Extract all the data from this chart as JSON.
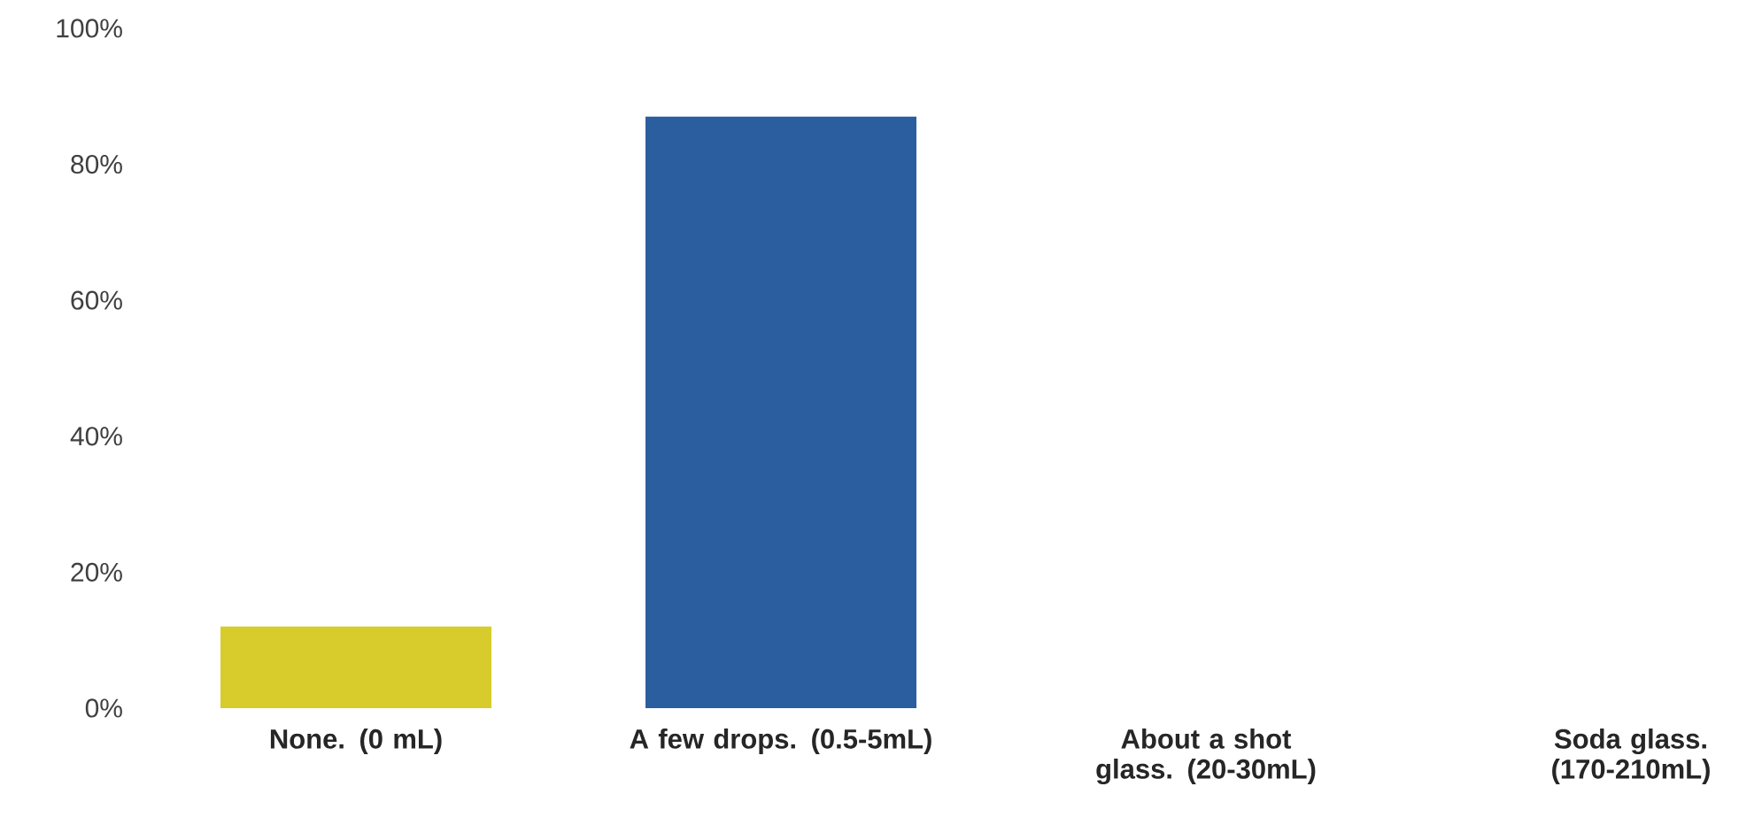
{
  "chart_data": {
    "type": "bar",
    "categories": [
      "None. (0 mL)",
      "A few drops. (0.5-5mL)",
      "About a shot glass. (20-30mL)",
      "Soda glass. (170-210mL)"
    ],
    "values": [
      12,
      87,
      0,
      0
    ],
    "colors": [
      "#d8cb2c",
      "#2b5e9e",
      "#2b5e9e",
      "#2b5e9e"
    ],
    "ylim": [
      0,
      100
    ],
    "yticks": [
      {
        "value": 0,
        "label": "0%"
      },
      {
        "value": 20,
        "label": "20%"
      },
      {
        "value": 40,
        "label": "40%"
      },
      {
        "value": 60,
        "label": "60%"
      },
      {
        "value": 80,
        "label": "80%"
      },
      {
        "value": 100,
        "label": "100%"
      }
    ]
  }
}
